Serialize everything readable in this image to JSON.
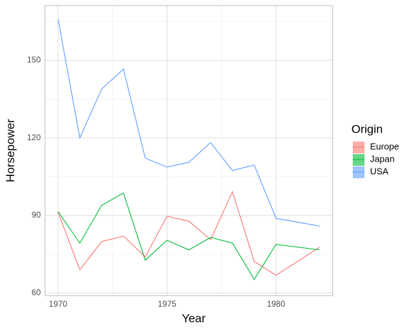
{
  "chart_data": {
    "type": "line",
    "xlabel": "Year",
    "ylabel": "Horsepower",
    "legend_title": "Origin",
    "legend_position": "right",
    "x": [
      1970,
      1971,
      1972,
      1973,
      1974,
      1975,
      1976,
      1977,
      1978,
      1979,
      1980,
      1982
    ],
    "series": [
      {
        "name": "Europe",
        "color": "#f8766d",
        "values": [
          91.2,
          69,
          79.9,
          82,
          74,
          89.7,
          87.8,
          80.6,
          99.2,
          72.2,
          66.9,
          77.7
        ]
      },
      {
        "name": "Japan",
        "color": "#00ba38",
        "values": [
          91.5,
          79.3,
          93.9,
          98.7,
          72.7,
          80.4,
          76.7,
          81.5,
          79.3,
          65.3,
          78.8,
          76.7
        ]
      },
      {
        "name": "USA",
        "color": "#619cff",
        "values": [
          166,
          120,
          138.9,
          146.6,
          112.2,
          108.7,
          110.6,
          118.2,
          107.4,
          109.5,
          88.9,
          85.9
        ]
      }
    ],
    "xlim": [
      1969.4,
      1982.6
    ],
    "xticks": [
      1970,
      1975,
      1980
    ],
    "xminor": [
      1972.5,
      1977.5,
      1982.5
    ],
    "ylim": [
      59,
      171.2
    ],
    "yticks": [
      60,
      90,
      120,
      150
    ],
    "yminor": [
      75,
      105,
      135,
      165
    ],
    "grid": true
  }
}
